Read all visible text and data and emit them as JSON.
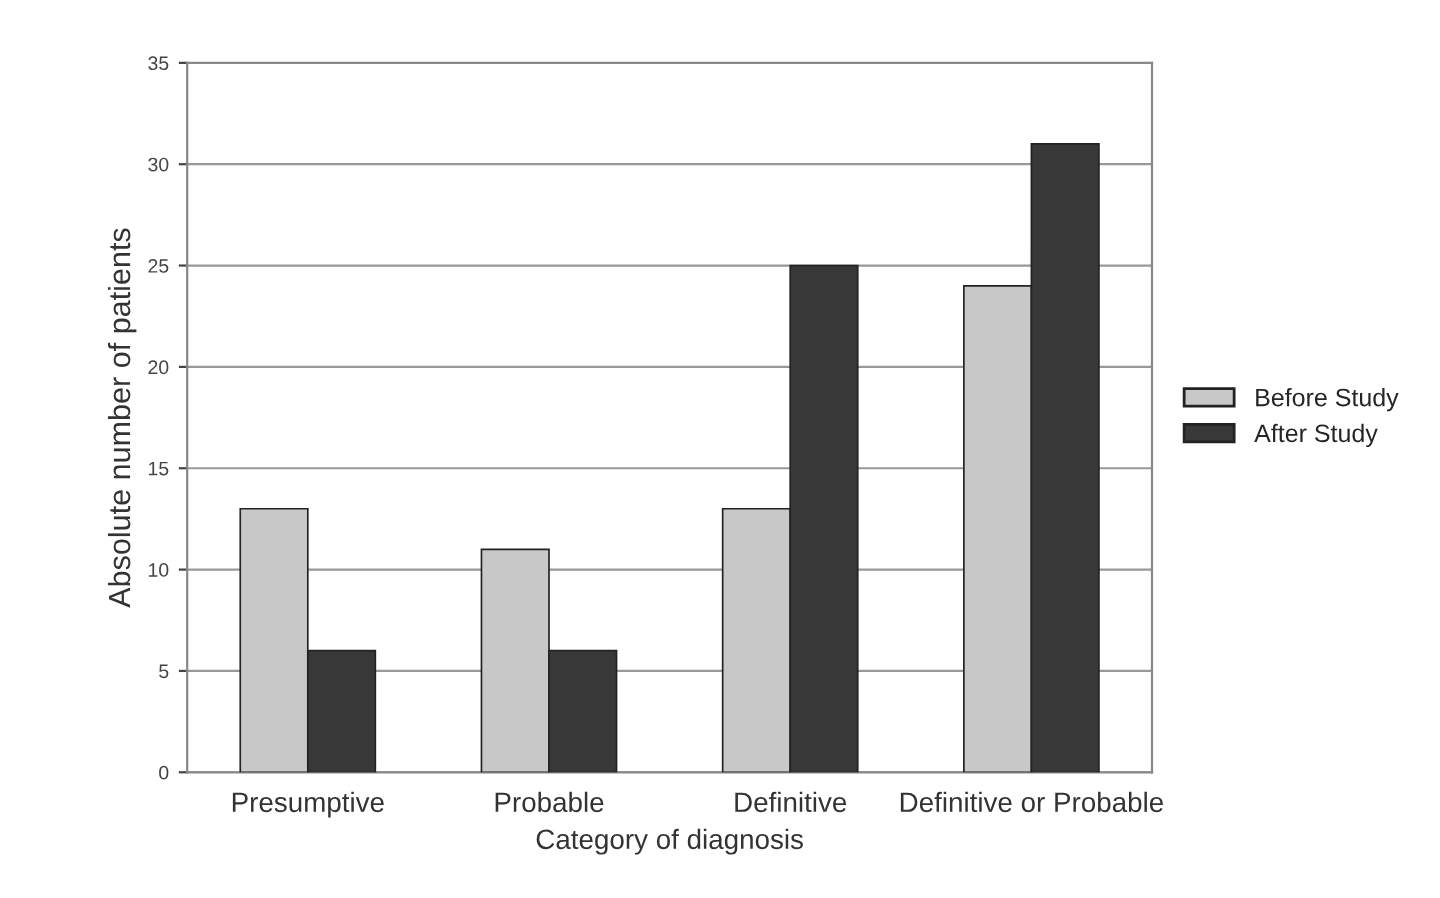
{
  "chart_data": {
    "type": "bar",
    "xlabel": "Category of diagnosis",
    "ylabel": "Absolute number of patients",
    "categories": [
      "Presumptive",
      "Probable",
      "Definitive",
      "Definitive or Probable"
    ],
    "series": [
      {
        "name": "Before Study",
        "color": "#c8c8c8",
        "values": [
          13,
          11,
          13,
          24
        ]
      },
      {
        "name": "After Study",
        "color": "#383838",
        "values": [
          6,
          6,
          25,
          31
        ]
      }
    ],
    "ylim": [
      0,
      35
    ],
    "yticks": [
      0,
      5,
      10,
      15,
      20,
      25,
      30,
      35
    ],
    "grid": "y",
    "legend": "right"
  }
}
